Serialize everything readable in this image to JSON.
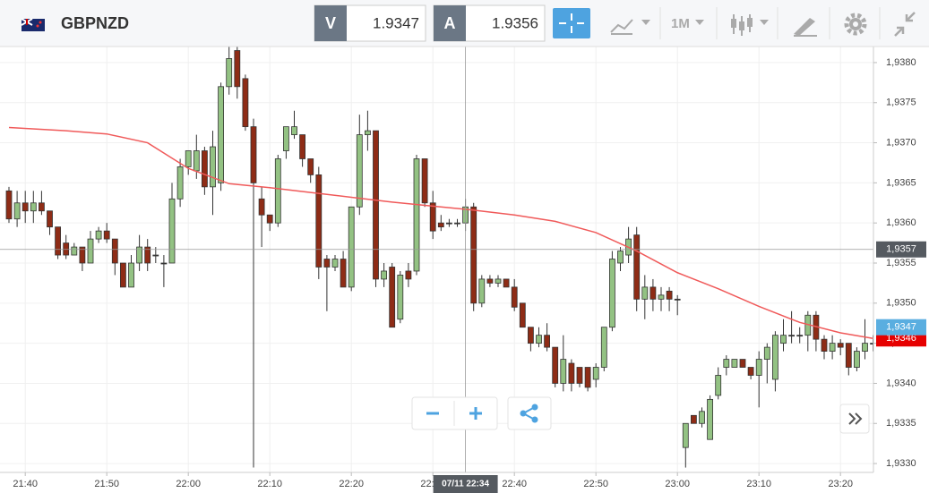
{
  "header": {
    "symbol": "GBPNZD",
    "sell_label": "V",
    "sell_price": "1.9347",
    "buy_label": "A",
    "buy_price": "1.9356",
    "timeframe": "1M"
  },
  "chart_data": {
    "type": "candlestick",
    "x": [
      "21:38",
      "21:39",
      "21:40",
      "21:41",
      "21:42",
      "21:43",
      "21:44",
      "21:45",
      "21:46",
      "21:47",
      "21:48",
      "21:49",
      "21:50",
      "21:51",
      "21:52",
      "21:53",
      "21:54",
      "21:55",
      "21:56",
      "21:57",
      "21:58",
      "21:59",
      "22:00",
      "22:01",
      "22:02",
      "22:03",
      "22:04",
      "22:05",
      "22:06",
      "22:07",
      "22:08",
      "22:09",
      "22:10",
      "22:11",
      "22:12",
      "22:13",
      "22:14",
      "22:15",
      "22:16",
      "22:17",
      "22:18",
      "22:19",
      "22:20",
      "22:21",
      "22:22",
      "22:23",
      "22:24",
      "22:25",
      "22:26",
      "22:27",
      "22:28",
      "22:29",
      "22:30",
      "22:31",
      "22:32",
      "22:33",
      "22:34",
      "22:35",
      "22:36",
      "22:37",
      "22:38",
      "22:39",
      "22:40",
      "22:41",
      "22:42",
      "22:43",
      "22:44",
      "22:45",
      "22:46",
      "22:47",
      "22:48",
      "22:49",
      "22:50",
      "22:51",
      "22:52",
      "22:53",
      "22:54",
      "22:55",
      "22:56",
      "22:57",
      "22:58",
      "22:59",
      "23:00",
      "23:01",
      "23:02",
      "23:03",
      "23:04",
      "23:05",
      "23:06",
      "23:07",
      "23:08",
      "23:09",
      "23:10",
      "23:11",
      "23:12",
      "23:13",
      "23:14",
      "23:15",
      "23:16",
      "23:17",
      "23:18",
      "23:19",
      "23:20",
      "23:21",
      "23:22",
      "23:23",
      "23:24"
    ],
    "open": [
      1.9364,
      1.93605,
      1.93625,
      1.93615,
      1.93625,
      1.93615,
      1.93595,
      1.93575,
      1.9356,
      1.9357,
      1.9355,
      1.9358,
      1.9359,
      1.9358,
      1.9355,
      1.9352,
      1.9355,
      1.9357,
      1.9356,
      1.9355,
      1.9355,
      1.9363,
      1.9367,
      1.93665,
      1.9369,
      1.93645,
      1.9365,
      1.9377,
      1.93815,
      1.9378,
      1.9372,
      1.9363,
      1.9361,
      1.936,
      1.9369,
      1.9371,
      1.9371,
      1.9368,
      1.9366,
      1.93555,
      1.93545,
      1.93555,
      1.9352,
      1.9362,
      1.9371,
      1.93715,
      1.9353,
      1.93545,
      1.9348,
      1.9354,
      1.9354,
      1.9368,
      1.93625,
      1.936,
      1.936,
      1.936,
      1.936,
      1.9362,
      1.935,
      1.9353,
      1.93525,
      1.9353,
      1.9352,
      1.935,
      1.9347,
      1.9345,
      1.9346,
      1.93445,
      1.934,
      1.93425,
      1.9342,
      1.9342,
      1.93405,
      1.9342,
      1.9347,
      1.9355,
      1.9356,
      1.93585,
      1.93505,
      1.9352,
      1.93505,
      1.93515,
      1.93505,
      1.9332,
      1.9336,
      1.9335,
      1.9333,
      1.93385,
      1.9342,
      1.9342,
      1.9343,
      1.9342,
      1.9341,
      1.9343,
      1.93405,
      1.9345,
      1.9346,
      1.9346,
      1.9346,
      1.93485,
      1.93455,
      1.9344,
      1.9345,
      1.9345,
      1.9342,
      1.9344,
      1.9345
    ],
    "high": [
      1.93645,
      1.9364,
      1.9364,
      1.9364,
      1.9364,
      1.93615,
      1.93595,
      1.93585,
      1.93575,
      1.9357,
      1.9359,
      1.93595,
      1.936,
      1.9358,
      1.9355,
      1.9356,
      1.93585,
      1.9358,
      1.9357,
      1.9356,
      1.9365,
      1.9368,
      1.9369,
      1.9371,
      1.93695,
      1.93715,
      1.93775,
      1.9382,
      1.9382,
      1.93785,
      1.9373,
      1.93645,
      1.9361,
      1.93685,
      1.9372,
      1.9374,
      1.9371,
      1.9368,
      1.9367,
      1.9356,
      1.9356,
      1.93565,
      1.9362,
      1.93735,
      1.9374,
      1.93715,
      1.9355,
      1.9355,
      1.9354,
      1.9355,
      1.93685,
      1.9368,
      1.9364,
      1.9361,
      1.93605,
      1.93605,
      1.9363,
      1.93625,
      1.93535,
      1.93535,
      1.93535,
      1.9353,
      1.9353,
      1.935,
      1.9347,
      1.9347,
      1.93475,
      1.93445,
      1.9346,
      1.9343,
      1.9342,
      1.9342,
      1.93425,
      1.9347,
      1.93565,
      1.9357,
      1.93595,
      1.93595,
      1.93535,
      1.9353,
      1.9352,
      1.9352,
      1.9351,
      1.9335,
      1.9336,
      1.9337,
      1.93385,
      1.9342,
      1.93435,
      1.9343,
      1.9343,
      1.9342,
      1.9344,
      1.9345,
      1.93465,
      1.9348,
      1.9349,
      1.9347,
      1.9349,
      1.9349,
      1.9346,
      1.9346,
      1.93455,
      1.9345,
      1.93445,
      1.9348,
      1.9346
    ],
    "low": [
      1.936,
      1.93595,
      1.936,
      1.936,
      1.9361,
      1.93585,
      1.93555,
      1.93555,
      1.9356,
      1.9354,
      1.9355,
      1.93575,
      1.93575,
      1.93535,
      1.9352,
      1.9352,
      1.9354,
      1.9354,
      1.9355,
      1.9352,
      1.9355,
      1.9362,
      1.9366,
      1.93655,
      1.93635,
      1.9361,
      1.9364,
      1.9376,
      1.93755,
      1.93715,
      1.93295,
      1.9357,
      1.9359,
      1.93595,
      1.9368,
      1.93705,
      1.9367,
      1.9365,
      1.9353,
      1.9349,
      1.9354,
      1.9352,
      1.93515,
      1.9361,
      1.9369,
      1.9352,
      1.9352,
      1.9347,
      1.93475,
      1.9352,
      1.93535,
      1.9362,
      1.9358,
      1.9359,
      1.93595,
      1.93595,
      1.9359,
      1.9349,
      1.93495,
      1.9352,
      1.9352,
      1.9352,
      1.9349,
      1.9347,
      1.9344,
      1.93445,
      1.9344,
      1.93395,
      1.9339,
      1.9339,
      1.93395,
      1.9339,
      1.93395,
      1.93415,
      1.93465,
      1.9354,
      1.9355,
      1.9349,
      1.9348,
      1.9349,
      1.9349,
      1.9349,
      1.93485,
      1.93295,
      1.9335,
      1.93345,
      1.9333,
      1.9338,
      1.9341,
      1.9342,
      1.9342,
      1.93405,
      1.9337,
      1.934,
      1.9339,
      1.9344,
      1.9345,
      1.9345,
      1.9344,
      1.9344,
      1.9343,
      1.9343,
      1.93435,
      1.9341,
      1.93415,
      1.9343,
      1.9344
    ],
    "close": [
      1.93605,
      1.93625,
      1.93615,
      1.93625,
      1.93615,
      1.93595,
      1.9356,
      1.9356,
      1.9357,
      1.9355,
      1.9358,
      1.9359,
      1.9358,
      1.9355,
      1.9352,
      1.9355,
      1.9357,
      1.9355,
      1.9356,
      1.9355,
      1.9363,
      1.9367,
      1.9369,
      1.9369,
      1.93645,
      1.93695,
      1.9377,
      1.93805,
      1.9377,
      1.9372,
      1.9365,
      1.9361,
      1.936,
      1.9368,
      1.9372,
      1.9372,
      1.9368,
      1.9366,
      1.93545,
      1.93545,
      1.93555,
      1.9352,
      1.9362,
      1.9371,
      1.93715,
      1.9353,
      1.9354,
      1.9347,
      1.93535,
      1.9353,
      1.9368,
      1.93625,
      1.9359,
      1.93595,
      1.936,
      1.936,
      1.9362,
      1.935,
      1.9353,
      1.93525,
      1.9353,
      1.9352,
      1.93495,
      1.9347,
      1.9345,
      1.9346,
      1.93445,
      1.934,
      1.9343,
      1.934,
      1.934,
      1.93395,
      1.9342,
      1.9347,
      1.93555,
      1.93565,
      1.9358,
      1.93505,
      1.9352,
      1.93505,
      1.9351,
      1.93505,
      1.93505,
      1.9335,
      1.9335,
      1.93365,
      1.9338,
      1.9341,
      1.9343,
      1.9343,
      1.9342,
      1.9341,
      1.9343,
      1.93445,
      1.9346,
      1.9346,
      1.9346,
      1.9346,
      1.93485,
      1.93455,
      1.9344,
      1.9345,
      1.93445,
      1.9342,
      1.9344,
      1.9345,
      1.9345
    ],
    "up_color": "#93c283",
    "down_color": "#8e2c16",
    "moving_average": {
      "color": "#f05a5a",
      "x": [
        "21:38",
        "21:45",
        "21:50",
        "21:55",
        "22:00",
        "22:05",
        "22:10",
        "22:15",
        "22:20",
        "22:25",
        "22:30",
        "22:35",
        "22:40",
        "22:45",
        "22:50",
        "22:55",
        "23:00",
        "23:05",
        "23:10",
        "23:15",
        "23:20",
        "23:24"
      ],
      "values": [
        1.93719,
        1.93715,
        1.93711,
        1.937,
        1.93668,
        1.93649,
        1.93644,
        1.93638,
        1.93632,
        1.93626,
        1.93621,
        1.93616,
        1.9361,
        1.93602,
        1.93588,
        1.93565,
        1.93538,
        1.93518,
        1.93496,
        1.93476,
        1.93463,
        1.93456
      ]
    },
    "ylim": [
      1.9328,
      1.9382
    ],
    "yticks": [
      {
        "value": 1.933,
        "label": "1,9330"
      },
      {
        "value": 1.9335,
        "label": "1,9335"
      },
      {
        "value": 1.934,
        "label": "1,9340"
      },
      {
        "value": 1.9345,
        "label": "1,9345"
      },
      {
        "value": 1.935,
        "label": "1,9350"
      },
      {
        "value": 1.9355,
        "label": "1,9355"
      },
      {
        "value": 1.936,
        "label": "1,9360"
      },
      {
        "value": 1.9365,
        "label": "1,9365"
      },
      {
        "value": 1.937,
        "label": "1,9370"
      },
      {
        "value": 1.9375,
        "label": "1,9375"
      },
      {
        "value": 1.938,
        "label": "1,9380"
      }
    ],
    "xticks": [
      "21:40",
      "21:50",
      "22:00",
      "22:10",
      "22:20",
      "22:30",
      "22:40",
      "22:50",
      "23:00",
      "23:10",
      "23:20"
    ],
    "grid": true,
    "crosshair": {
      "x": "22:34",
      "time_label": "07/11 22:34",
      "price": {
        "value": 1.93567,
        "label": "1,9357"
      }
    },
    "price_tags": [
      {
        "value": 1.93456,
        "label": "1,9346",
        "color": "#e60000"
      },
      {
        "value": 1.9347,
        "label": "1,9347",
        "color": "#5aaee0"
      }
    ]
  }
}
